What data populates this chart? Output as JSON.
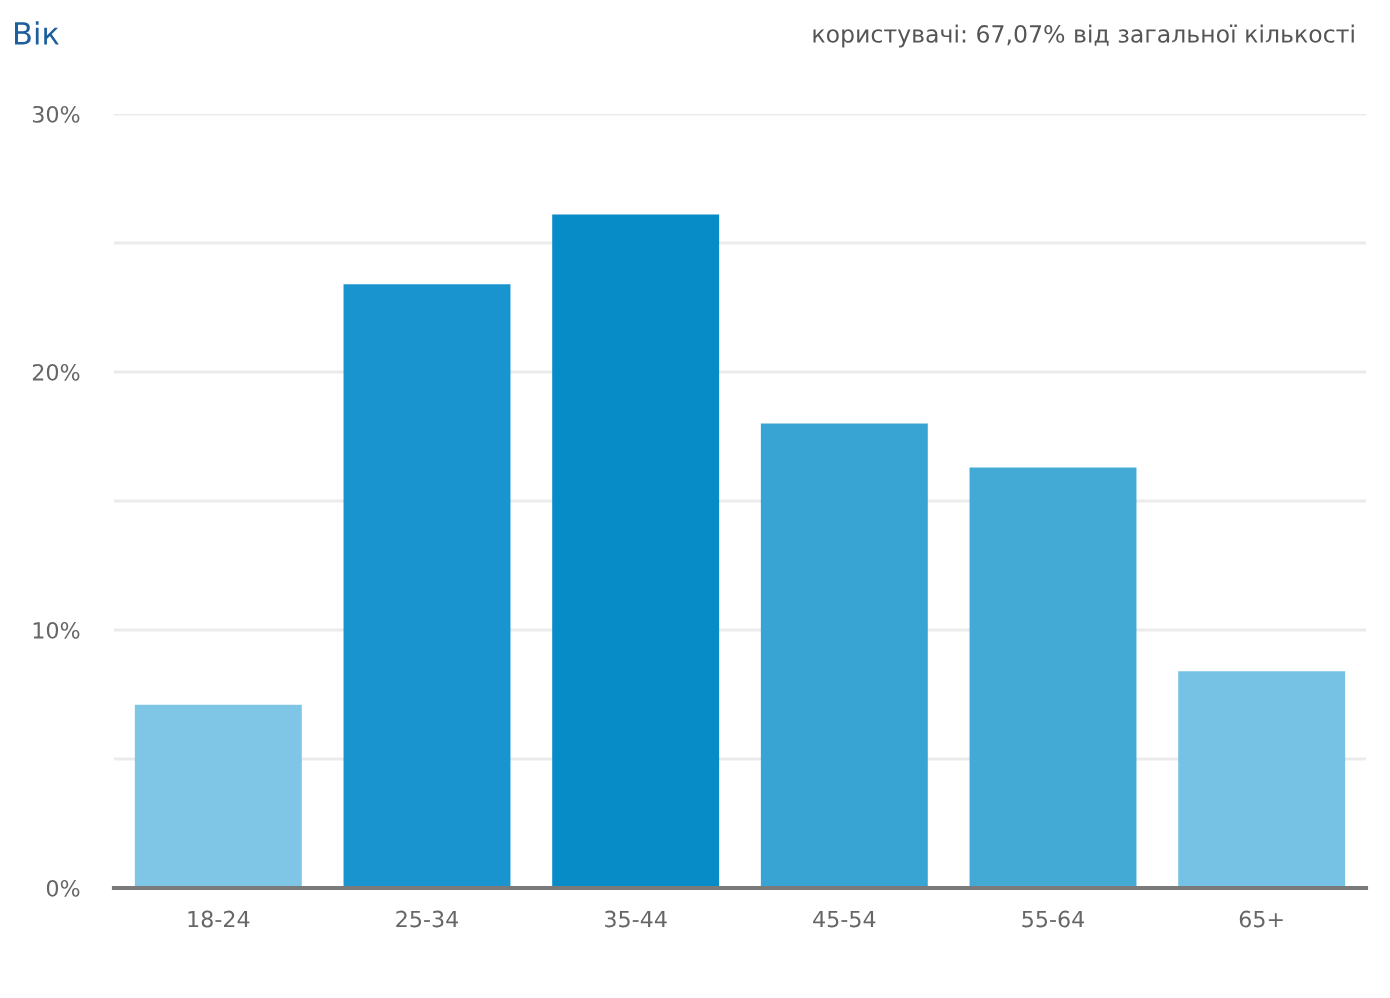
{
  "chart_data": {
    "type": "bar",
    "title": "Вік",
    "subtitle": "користувачі: 67,07% від загальної кількості",
    "categories": [
      "18-24",
      "25-34",
      "35-44",
      "45-54",
      "55-64",
      "65+"
    ],
    "values": [
      7.1,
      23.4,
      26.1,
      18.0,
      16.3,
      8.4
    ],
    "colors": [
      "#7fc6e6",
      "#1a94ce",
      "#078cc7",
      "#38a4d4",
      "#43aad6",
      "#76c2e4"
    ],
    "ylim": [
      0,
      30
    ],
    "yticks": [
      {
        "value": 0,
        "label": "0%"
      },
      {
        "value": 5,
        "label": null
      },
      {
        "value": 10,
        "label": "10%"
      },
      {
        "value": 15,
        "label": null
      },
      {
        "value": 20,
        "label": "20%"
      },
      {
        "value": 25,
        "label": null
      },
      {
        "value": 30,
        "label": "30%"
      }
    ],
    "grid": "y",
    "legend": false
  }
}
